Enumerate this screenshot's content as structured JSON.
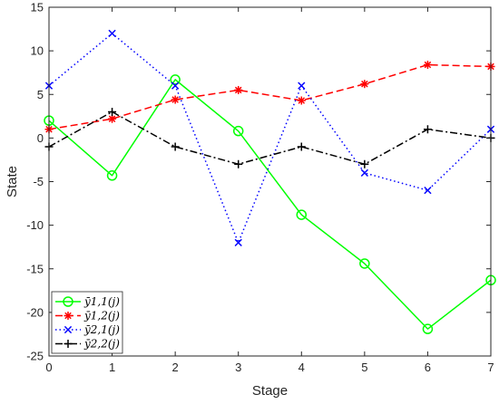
{
  "chart_data": {
    "type": "line",
    "title": "",
    "xlabel": "Stage",
    "ylabel": "State",
    "xlim": [
      0,
      7
    ],
    "ylim": [
      -25,
      15
    ],
    "x_ticks": [
      "0",
      "1",
      "2",
      "3",
      "4",
      "5",
      "6",
      "7"
    ],
    "y_ticks": [
      "-25",
      "-20",
      "-15",
      "-10",
      "-5",
      "0",
      "5",
      "10",
      "15"
    ],
    "grid": false,
    "legend_position": "bottom-left",
    "x": [
      0,
      1,
      2,
      3,
      4,
      5,
      6,
      7
    ],
    "series": [
      {
        "name": "ȳ1,1(j)",
        "values": [
          2,
          -4.3,
          6.7,
          0.8,
          -8.8,
          -14.4,
          -21.9,
          -16.3
        ],
        "color": "#00ff00",
        "dash": "solid",
        "marker": "circle"
      },
      {
        "name": "ȳ1,2(j)",
        "values": [
          1,
          2.2,
          4.4,
          5.5,
          4.3,
          6.2,
          8.4,
          8.2
        ],
        "color": "#ff0000",
        "dash": "dashed",
        "marker": "asterisk"
      },
      {
        "name": "ȳ2,1(j)",
        "values": [
          6,
          12,
          6,
          -12,
          6,
          -4,
          -6,
          1
        ],
        "color": "#0000ff",
        "dash": "dotted",
        "marker": "x"
      },
      {
        "name": "ȳ2,2(j)",
        "values": [
          -1,
          3,
          -1,
          -3,
          -1,
          -3,
          1,
          0
        ],
        "color": "#000000",
        "dash": "dashdot",
        "marker": "plus"
      }
    ]
  }
}
